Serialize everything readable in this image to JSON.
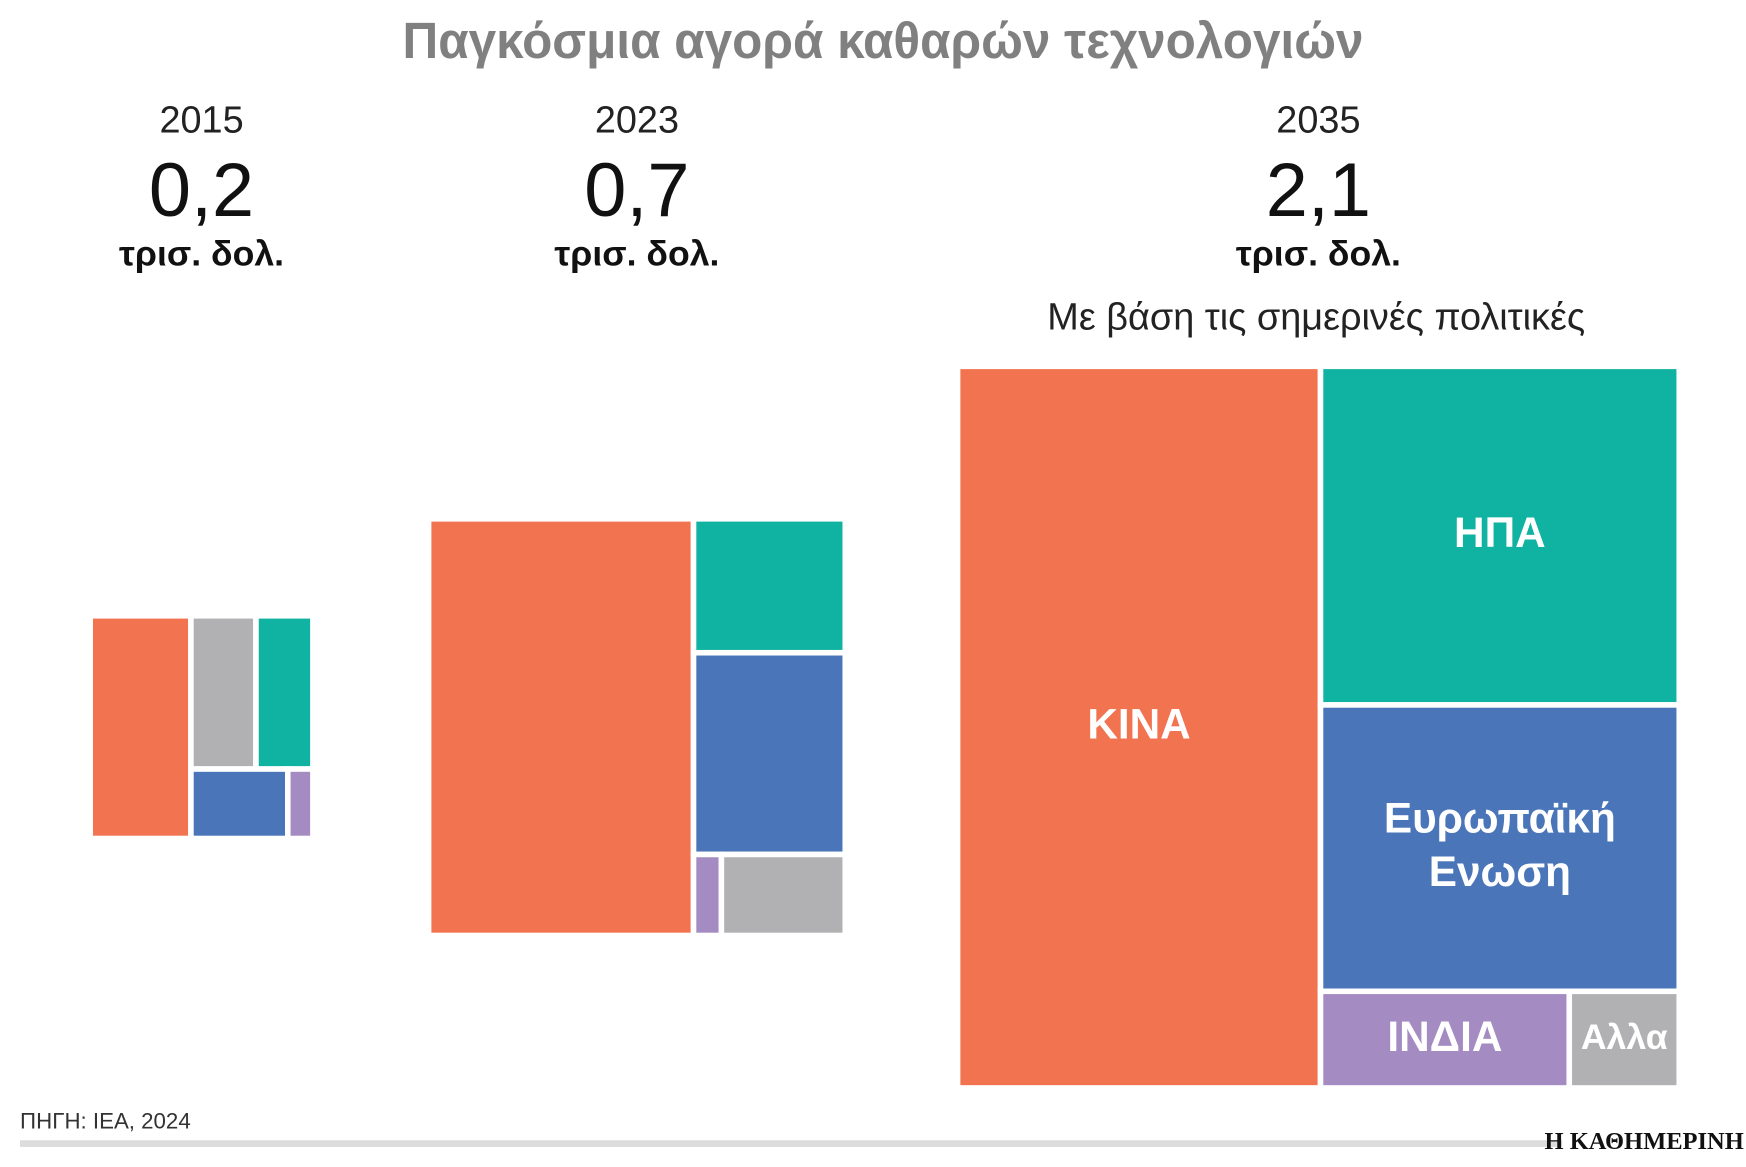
{
  "chart_data": {
    "type": "treemap",
    "title": "Παγκόσμια αγορά καθαρών τεχνολογιών",
    "categories": [
      "2015",
      "2023",
      "2035"
    ],
    "totals": [
      {
        "value": 0.2,
        "label": "0,2"
      },
      {
        "value": 0.7,
        "label": "0,7"
      },
      {
        "value": 2.1,
        "label": "2,1"
      }
    ],
    "unit": "τρισ. δολ.",
    "annotation": "Με βάση τις σημερινές πολιτικές",
    "series": [
      {
        "name": "ΚΙΝΑ",
        "color": "#f27350",
        "values": [
          0.09,
          0.44,
          1.035
        ]
      },
      {
        "name": "ΗΠΑ",
        "color": "#10b2a1",
        "values": [
          0.035,
          0.081,
          0.48
        ]
      },
      {
        "name": "Ευρωπαϊκή Ενωση",
        "color": "#4a76b9",
        "values": [
          0.027,
          0.122,
          0.406
        ]
      },
      {
        "name": "ΙΝΔΙΑ",
        "color": "#a48bc2",
        "values": [
          0.007,
          0.009,
          0.095
        ]
      },
      {
        "name": "Αλλα",
        "color": "#b1b0b2",
        "values": [
          0.04,
          0.04,
          0.042
        ]
      }
    ],
    "source": "ΠΗΓΗ: IEA, 2024",
    "brand": "Η ΚΑΘΗΜΕΡΙΝΗ"
  }
}
